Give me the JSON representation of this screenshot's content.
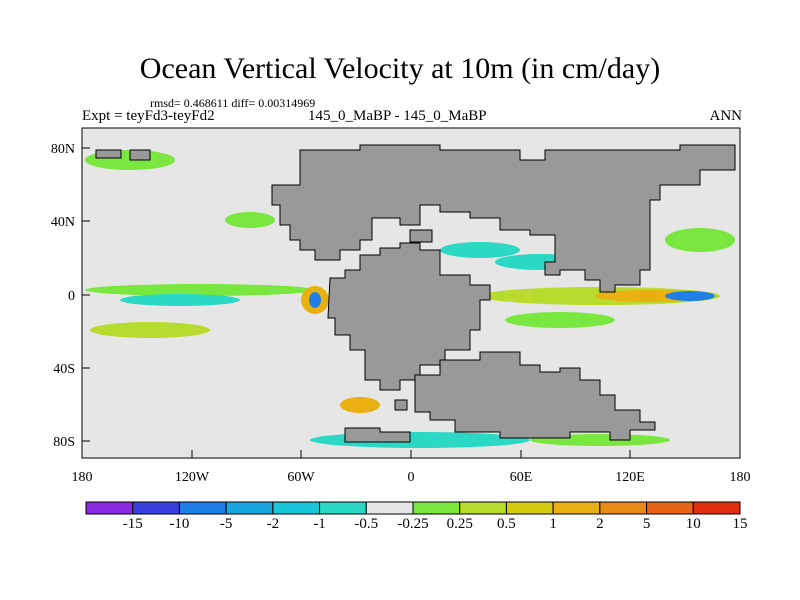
{
  "title": "Ocean Vertical Velocity at 10m (in cm/day)",
  "rmsd_line": "rmsd= 0.468611 diff= 0.00314969",
  "expt_line": "Expt = teyFd3-teyFd2",
  "case_line": "145_0_MaBP - 145_0_MaBP",
  "season": "ANN",
  "axes": {
    "lon_ticks": [
      "180",
      "120W",
      "60W",
      "0",
      "60E",
      "120E",
      "180"
    ],
    "lat_ticks": [
      "80N",
      "40N",
      "0",
      "40S",
      "80S"
    ]
  },
  "colorbar": {
    "labels": [
      "-15",
      "-10",
      "-5",
      "-2",
      "-1",
      "-0.5",
      "-0.25",
      "0.25",
      "0.5",
      "1",
      "2",
      "5",
      "10",
      "15"
    ],
    "colors": [
      "#8a2be2",
      "#3a3ee0",
      "#1f7fe6",
      "#1aa7e0",
      "#19c5d8",
      "#2ad8c4",
      "#e6e6e6",
      "#7ae640",
      "#b8dc2e",
      "#d8cc10",
      "#e8b010",
      "#e88a18",
      "#e86418",
      "#e03010"
    ]
  },
  "palette": {
    "land": "#999999",
    "neutral": "#e6e6e6"
  }
}
